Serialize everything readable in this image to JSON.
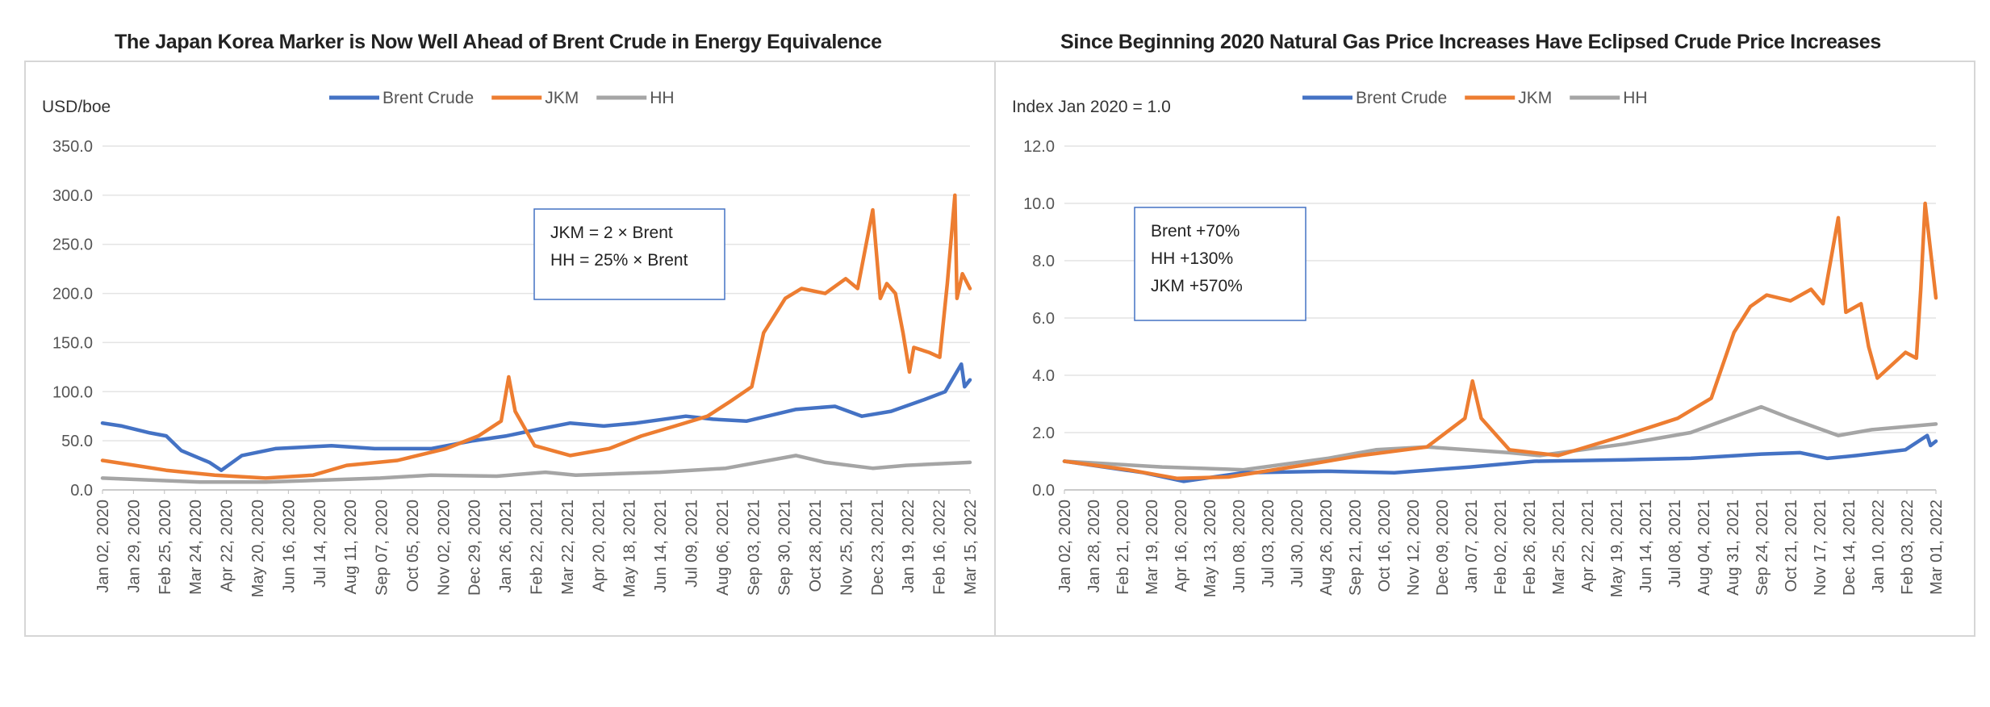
{
  "colors": {
    "brent": "#4472C4",
    "jkm": "#ED7D31",
    "hh": "#A5A5A5",
    "annotation_border": "#4472C4",
    "grid": "#e4e4e4"
  },
  "chart_data": [
    {
      "type": "line",
      "title": "The Japan Korea Marker is Now Well Ahead of Brent Crude in Energy Equivalence",
      "ylabel": "USD/boe",
      "ylim": [
        0,
        350
      ],
      "yticks": [
        "0.0",
        "50.0",
        "100.0",
        "150.0",
        "200.0",
        "250.0",
        "300.0",
        "350.0"
      ],
      "xlim": [
        "2020-01-02",
        "2022-03-15"
      ],
      "xticks": [
        "Jan 02, 2020",
        "Jan 29, 2020",
        "Feb 25, 2020",
        "Mar 24, 2020",
        "Apr 22, 2020",
        "May 20, 2020",
        "Jun 16, 2020",
        "Jul 14, 2020",
        "Aug 11, 2020",
        "Sep 07, 2020",
        "Oct 05, 2020",
        "Nov 02, 2020",
        "Dec 29, 2020",
        "Jan 26, 2021",
        "Feb 22, 2021",
        "Mar 22, 2021",
        "Apr 20, 2021",
        "May 18, 2021",
        "Jun 14, 2021",
        "Jul 09, 2021",
        "Aug 06, 2021",
        "Sep 03, 2021",
        "Sep 30, 2021",
        "Oct 28, 2021",
        "Nov 25, 2021",
        "Dec 23, 2021",
        "Jan 19, 2022",
        "Feb 16, 2022",
        "Mar 15, 2022"
      ],
      "legend": "top-center",
      "grid": true,
      "annotation": [
        "JKM = 2 × Brent",
        "HH = 25% × Brent"
      ],
      "series": [
        {
          "name": "Brent Crude",
          "key": "brent",
          "x": [
            "2020-01-02",
            "2020-01-20",
            "2020-02-15",
            "2020-03-01",
            "2020-03-15",
            "2020-04-10",
            "2020-04-21",
            "2020-05-10",
            "2020-06-10",
            "2020-08-01",
            "2020-09-10",
            "2020-11-01",
            "2020-12-10",
            "2021-01-10",
            "2021-02-10",
            "2021-03-10",
            "2021-04-10",
            "2021-05-10",
            "2021-06-25",
            "2021-07-20",
            "2021-08-20",
            "2021-10-05",
            "2021-11-10",
            "2021-12-05",
            "2022-01-01",
            "2022-02-01",
            "2022-02-20",
            "2022-03-07",
            "2022-03-10",
            "2022-03-15"
          ],
          "y": [
            68,
            65,
            58,
            55,
            40,
            28,
            20,
            35,
            42,
            45,
            42,
            42,
            50,
            55,
            62,
            68,
            65,
            68,
            75,
            72,
            70,
            82,
            85,
            75,
            80,
            92,
            100,
            128,
            105,
            112
          ]
        },
        {
          "name": "JKM",
          "key": "jkm",
          "x": [
            "2020-01-02",
            "2020-02-01",
            "2020-03-01",
            "2020-04-15",
            "2020-06-01",
            "2020-07-15",
            "2020-08-15",
            "2020-10-01",
            "2020-11-15",
            "2020-12-15",
            "2021-01-05",
            "2021-01-12",
            "2021-01-18",
            "2021-02-05",
            "2021-03-10",
            "2021-04-15",
            "2021-05-15",
            "2021-06-15",
            "2021-07-15",
            "2021-08-05",
            "2021-08-25",
            "2021-09-05",
            "2021-09-25",
            "2021-10-10",
            "2021-11-01",
            "2021-11-20",
            "2021-12-01",
            "2021-12-15",
            "2021-12-22",
            "2021-12-28",
            "2022-01-05",
            "2022-01-12",
            "2022-01-18",
            "2022-01-22",
            "2022-02-05",
            "2022-02-15",
            "2022-02-22",
            "2022-03-01",
            "2022-03-03",
            "2022-03-08",
            "2022-03-15"
          ],
          "y": [
            30,
            25,
            20,
            15,
            12,
            15,
            25,
            30,
            42,
            55,
            70,
            115,
            80,
            45,
            35,
            42,
            55,
            65,
            75,
            90,
            105,
            160,
            195,
            205,
            200,
            215,
            205,
            285,
            195,
            210,
            200,
            160,
            120,
            145,
            140,
            135,
            210,
            300,
            195,
            220,
            205
          ]
        },
        {
          "name": "HH",
          "key": "hh",
          "x": [
            "2020-01-02",
            "2020-04-01",
            "2020-06-01",
            "2020-09-15",
            "2020-11-01",
            "2021-01-01",
            "2021-02-15",
            "2021-03-15",
            "2021-06-01",
            "2021-08-01",
            "2021-10-05",
            "2021-11-01",
            "2021-12-15",
            "2022-01-15",
            "2022-03-15"
          ],
          "y": [
            12,
            8,
            8,
            12,
            15,
            14,
            18,
            15,
            18,
            22,
            35,
            28,
            22,
            25,
            28
          ]
        }
      ]
    },
    {
      "type": "line",
      "title": "Since Beginning 2020 Natural Gas Price Increases Have Eclipsed Crude Price Increases",
      "ylabel": "Index Jan 2020 = 1.0",
      "ylim": [
        0,
        12
      ],
      "yticks": [
        "0.0",
        "2.0",
        "4.0",
        "6.0",
        "8.0",
        "10.0",
        "12.0"
      ],
      "xlim": [
        "2020-01-02",
        "2022-03-15"
      ],
      "xticks": [
        "Jan 02, 2020",
        "Jan 28, 2020",
        "Feb 21, 2020",
        "Mar 19, 2020",
        "Apr 16, 2020",
        "May 13, 2020",
        "Jun 08, 2020",
        "Jul 03, 2020",
        "Jul 30, 2020",
        "Aug 26, 2020",
        "Sep 21, 2020",
        "Oct 16, 2020",
        "Nov 12, 2020",
        "Dec 09, 2020",
        "Jan 07, 2021",
        "Feb 02, 2021",
        "Feb 26, 2021",
        "Mar 25, 2021",
        "Apr 22, 2021",
        "May 19, 2021",
        "Jun 14, 2021",
        "Jul 08, 2021",
        "Aug 04, 2021",
        "Aug 31, 2021",
        "Sep 24, 2021",
        "Oct 21, 2021",
        "Nov 17, 2021",
        "Dec 14, 2021",
        "Jan 10, 2022",
        "Feb 03, 2022",
        "Mar 01, 2022"
      ],
      "legend": "top-center",
      "grid": true,
      "annotation": [
        "Brent  +70%",
        "HH     +130%",
        "JKM    +570%"
      ],
      "series": [
        {
          "name": "Brent Crude",
          "key": "brent",
          "x": [
            "2020-01-02",
            "2020-03-15",
            "2020-04-21",
            "2020-06-15",
            "2020-09-01",
            "2020-11-01",
            "2021-01-10",
            "2021-03-10",
            "2021-06-01",
            "2021-08-01",
            "2021-10-05",
            "2021-11-10",
            "2021-12-05",
            "2022-01-01",
            "2022-02-15",
            "2022-03-07",
            "2022-03-10",
            "2022-03-15"
          ],
          "y": [
            1.0,
            0.6,
            0.3,
            0.6,
            0.65,
            0.6,
            0.8,
            1.0,
            1.05,
            1.1,
            1.25,
            1.3,
            1.1,
            1.2,
            1.4,
            1.9,
            1.55,
            1.7
          ]
        },
        {
          "name": "JKM",
          "key": "jkm",
          "x": [
            "2020-01-02",
            "2020-03-01",
            "2020-04-15",
            "2020-06-01",
            "2020-08-15",
            "2020-10-01",
            "2020-12-01",
            "2021-01-05",
            "2021-01-12",
            "2021-01-20",
            "2021-02-15",
            "2021-04-01",
            "2021-06-01",
            "2021-07-20",
            "2021-08-20",
            "2021-09-10",
            "2021-09-25",
            "2021-10-10",
            "2021-11-01",
            "2021-11-20",
            "2021-12-01",
            "2021-12-15",
            "2021-12-22",
            "2022-01-05",
            "2022-01-12",
            "2022-01-20",
            "2022-02-15",
            "2022-02-25",
            "2022-03-01",
            "2022-03-05",
            "2022-03-15"
          ],
          "y": [
            1.0,
            0.7,
            0.4,
            0.45,
            0.9,
            1.2,
            1.5,
            2.5,
            3.8,
            2.5,
            1.4,
            1.2,
            1.9,
            2.5,
            3.2,
            5.5,
            6.4,
            6.8,
            6.6,
            7.0,
            6.5,
            9.5,
            6.2,
            6.5,
            5.0,
            3.9,
            4.8,
            4.6,
            7.0,
            10.0,
            6.7
          ]
        },
        {
          "name": "HH",
          "key": "hh",
          "x": [
            "2020-01-02",
            "2020-04-01",
            "2020-06-15",
            "2020-09-01",
            "2020-10-15",
            "2020-12-01",
            "2021-02-15",
            "2021-03-15",
            "2021-06-01",
            "2021-08-01",
            "2021-10-05",
            "2021-11-01",
            "2021-12-15",
            "2022-01-15",
            "2022-03-15"
          ],
          "y": [
            1.0,
            0.8,
            0.7,
            1.1,
            1.4,
            1.5,
            1.3,
            1.2,
            1.6,
            2.0,
            2.9,
            2.5,
            1.9,
            2.1,
            2.3
          ]
        }
      ]
    }
  ]
}
